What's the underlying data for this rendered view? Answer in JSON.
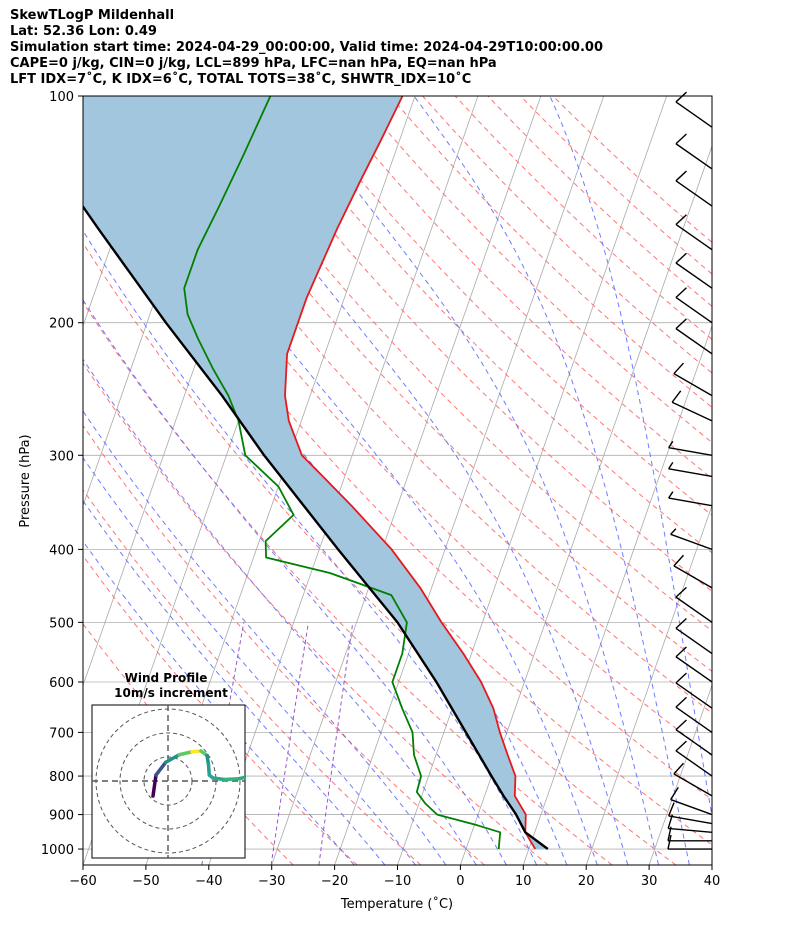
{
  "header": {
    "line1": "SkewTLogP Mildenhall",
    "line2": "Lat: 52.36   Lon: 0.49",
    "line3": "Simulation start time: 2024-04-29_00:00:00, Valid time: 2024-04-29T10:00:00.00",
    "line4": "CAPE=0 j/kg, CIN=0 j/kg, LCL=899 hPa, LFC=nan hPa, EQ=nan hPa",
    "line5": "LFT IDX=7˚C, K IDX=6˚C, TOTAL TOTS=38˚C, SHWTR_IDX=10˚C"
  },
  "colors": {
    "temperature": "#e41a1c",
    "dewpoint": "#008000",
    "parcel": "#000000",
    "cape_fill": "#a3c6df",
    "dry_adiabat": "#ff6666",
    "moist_adiabat": "#5566ff",
    "mixing_ratio": "#9955cc",
    "isotherm": "#aaaaaa"
  },
  "chart_data": {
    "type": "line",
    "title": "SkewTLogP Mildenhall",
    "xlabel": "Temperature (˚C)",
    "ylabel": "Pressure (hPa)",
    "xlim": [
      -60,
      40
    ],
    "ylim": [
      1050,
      100
    ],
    "y_scale": "log",
    "grid": true,
    "x_ticks": [
      -60,
      -50,
      -40,
      -30,
      -20,
      -10,
      0,
      10,
      20,
      30,
      40
    ],
    "y_ticks": [
      100,
      200,
      300,
      400,
      500,
      600,
      700,
      800,
      900,
      1000
    ],
    "series": [
      {
        "name": "temperature",
        "points": [
          [
            1000,
            11
          ],
          [
            950,
            8.5
          ],
          [
            900,
            7.6
          ],
          [
            850,
            4.8
          ],
          [
            800,
            3.8
          ],
          [
            750,
            1.4
          ],
          [
            700,
            -1.1
          ],
          [
            650,
            -3.5
          ],
          [
            600,
            -6.9
          ],
          [
            550,
            -11.3
          ],
          [
            500,
            -16.5
          ],
          [
            450,
            -21.8
          ],
          [
            400,
            -28.5
          ],
          [
            350,
            -37.3
          ],
          [
            320,
            -43.5
          ],
          [
            300,
            -48
          ],
          [
            270,
            -52
          ],
          [
            250,
            -54
          ],
          [
            220,
            -56
          ],
          [
            200,
            -56
          ],
          [
            185,
            -56
          ],
          [
            150,
            -55
          ],
          [
            130,
            -54
          ],
          [
            115,
            -53
          ],
          [
            100,
            -52
          ]
        ]
      },
      {
        "name": "dewpoint",
        "points": [
          [
            1000,
            5.2
          ],
          [
            950,
            4.5
          ],
          [
            930,
            0.5
          ],
          [
            900,
            -6.5
          ],
          [
            870,
            -9
          ],
          [
            840,
            -11
          ],
          [
            800,
            -11.2
          ],
          [
            750,
            -13.5
          ],
          [
            700,
            -15
          ],
          [
            650,
            -18
          ],
          [
            600,
            -21
          ],
          [
            550,
            -21
          ],
          [
            500,
            -22
          ],
          [
            460,
            -26
          ],
          [
            430,
            -37
          ],
          [
            410,
            -48
          ],
          [
            390,
            -49
          ],
          [
            360,
            -46
          ],
          [
            330,
            -50
          ],
          [
            300,
            -57
          ],
          [
            270,
            -60
          ],
          [
            250,
            -63
          ],
          [
            230,
            -67
          ],
          [
            210,
            -71
          ],
          [
            195,
            -74
          ],
          [
            180,
            -76
          ],
          [
            160,
            -76
          ],
          [
            140,
            -75
          ],
          [
            120,
            -74
          ],
          [
            100,
            -73
          ]
        ]
      },
      {
        "name": "parcel",
        "points": [
          [
            1000,
            13
          ],
          [
            950,
            8.5
          ],
          [
            899,
            6
          ],
          [
            850,
            3
          ],
          [
            800,
            0
          ],
          [
            700,
            -6.5
          ],
          [
            600,
            -14
          ],
          [
            500,
            -23.5
          ],
          [
            400,
            -37
          ],
          [
            300,
            -54
          ],
          [
            250,
            -64
          ],
          [
            200,
            -77
          ],
          [
            150,
            -93
          ],
          [
            100,
            -115
          ]
        ]
      }
    ],
    "wind_barbs": [
      {
        "p": 1000,
        "speed_kt": 10,
        "dir": 270
      },
      {
        "p": 975,
        "speed_kt": 10,
        "dir": 270
      },
      {
        "p": 950,
        "speed_kt": 10,
        "dir": 275
      },
      {
        "p": 925,
        "speed_kt": 10,
        "dir": 280
      },
      {
        "p": 900,
        "speed_kt": 10,
        "dir": 290
      },
      {
        "p": 850,
        "speed_kt": 10,
        "dir": 300
      },
      {
        "p": 800,
        "speed_kt": 10,
        "dir": 305
      },
      {
        "p": 750,
        "speed_kt": 10,
        "dir": 305
      },
      {
        "p": 700,
        "speed_kt": 10,
        "dir": 305
      },
      {
        "p": 650,
        "speed_kt": 10,
        "dir": 305
      },
      {
        "p": 600,
        "speed_kt": 10,
        "dir": 305
      },
      {
        "p": 550,
        "speed_kt": 10,
        "dir": 305
      },
      {
        "p": 500,
        "speed_kt": 10,
        "dir": 305
      },
      {
        "p": 450,
        "speed_kt": 10,
        "dir": 300
      },
      {
        "p": 400,
        "speed_kt": 5,
        "dir": 290
      },
      {
        "p": 350,
        "speed_kt": 5,
        "dir": 280
      },
      {
        "p": 320,
        "speed_kt": 5,
        "dir": 280
      },
      {
        "p": 300,
        "speed_kt": 5,
        "dir": 280
      },
      {
        "p": 270,
        "speed_kt": 10,
        "dir": 295
      },
      {
        "p": 250,
        "speed_kt": 10,
        "dir": 300
      },
      {
        "p": 220,
        "speed_kt": 10,
        "dir": 305
      },
      {
        "p": 200,
        "speed_kt": 10,
        "dir": 305
      },
      {
        "p": 180,
        "speed_kt": 10,
        "dir": 305
      },
      {
        "p": 160,
        "speed_kt": 10,
        "dir": 305
      },
      {
        "p": 140,
        "speed_kt": 10,
        "dir": 305
      },
      {
        "p": 125,
        "speed_kt": 10,
        "dir": 305
      },
      {
        "p": 110,
        "speed_kt": 10,
        "dir": 305
      }
    ],
    "inset": {
      "title_line1": "Wind Profile",
      "title_line2": "10m/s increment",
      "hodograph": [
        [
          -2,
          -2
        ],
        [
          -1.6,
          0.8
        ],
        [
          -0.3,
          2.5
        ],
        [
          1.5,
          3.5
        ],
        [
          3.2,
          3.9
        ],
        [
          4.4,
          4
        ],
        [
          5.2,
          3.4
        ],
        [
          5.4,
          2.2
        ],
        [
          5.5,
          0.8
        ],
        [
          6,
          0.4
        ],
        [
          7.5,
          0.2
        ],
        [
          9.5,
          0.3
        ],
        [
          11,
          0.7
        ]
      ]
    }
  }
}
